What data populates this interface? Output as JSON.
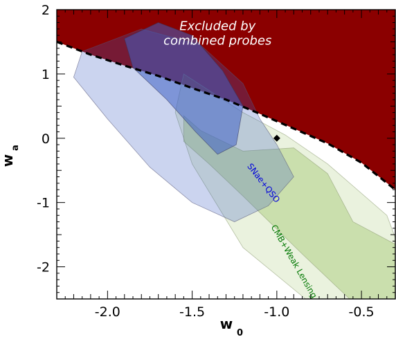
{
  "chart_data": {
    "type": "contour",
    "x_axis": {
      "label": "w",
      "label_subscript": "0",
      "lim": [
        -2.3,
        -0.3
      ],
      "ticks": [
        -2.0,
        -1.5,
        -1.0,
        -0.5
      ],
      "tick_labels": [
        "-2.0",
        "-1.5",
        "-1.0",
        "-0.5"
      ]
    },
    "y_axis": {
      "label": "w",
      "label_subscript": "a",
      "lim": [
        -2.5,
        2.0
      ],
      "ticks": [
        -2,
        -1,
        0,
        1,
        2
      ],
      "tick_labels": [
        "-2",
        "-1",
        "0",
        "1",
        "2"
      ]
    },
    "grid": false,
    "regions": [
      {
        "name": "Excluded by combined probes",
        "label_lines": [
          "Excluded by",
          "combined probes"
        ],
        "color": "#8b0000",
        "boundary": [
          [
            -2.3,
            1.5
          ],
          [
            -2.1,
            1.3
          ],
          [
            -1.9,
            1.13
          ],
          [
            -1.7,
            0.97
          ],
          [
            -1.5,
            0.78
          ],
          [
            -1.3,
            0.6
          ],
          [
            -1.1,
            0.38
          ],
          [
            -0.9,
            0.15
          ],
          [
            -0.7,
            -0.08
          ],
          [
            -0.5,
            -0.38
          ],
          [
            -0.3,
            -0.8
          ]
        ]
      },
      {
        "name": "CMB+Weak Lensing",
        "color": "#8ab84a",
        "label_color": "#007700",
        "outer": [
          [
            -1.55,
            1.0
          ],
          [
            -1.2,
            0.4
          ],
          [
            -0.95,
            0.05
          ],
          [
            -0.7,
            -0.4
          ],
          [
            -0.35,
            -1.2
          ],
          [
            -0.3,
            -1.55
          ],
          [
            -0.3,
            -2.5
          ],
          [
            -0.83,
            -2.5
          ],
          [
            -1.2,
            -1.7
          ],
          [
            -1.5,
            -0.4
          ],
          [
            -1.6,
            0.4
          ]
        ],
        "inner": [
          [
            -1.55,
            0.35
          ],
          [
            -1.45,
            0.12
          ],
          [
            -1.2,
            -0.2
          ],
          [
            -0.9,
            -0.15
          ],
          [
            -0.7,
            -0.55
          ],
          [
            -0.55,
            -1.3
          ],
          [
            -0.3,
            -1.65
          ],
          [
            -0.3,
            -2.5
          ],
          [
            -0.57,
            -2.5
          ],
          [
            -0.85,
            -1.8
          ],
          [
            -1.2,
            -0.9
          ],
          [
            -1.4,
            -0.4
          ],
          [
            -1.55,
            -0.05
          ]
        ]
      },
      {
        "name": "SNae+QSO",
        "color": "#3f60c4",
        "label_color": "#0000dd",
        "outer": [
          [
            -1.8,
            1.7
          ],
          [
            -1.45,
            1.45
          ],
          [
            -1.2,
            0.85
          ],
          [
            -1.1,
            0.3
          ],
          [
            -1.0,
            -0.1
          ],
          [
            -0.9,
            -0.6
          ],
          [
            -1.05,
            -1.05
          ],
          [
            -1.25,
            -1.3
          ],
          [
            -1.5,
            -1.0
          ],
          [
            -1.75,
            -0.45
          ],
          [
            -2.0,
            0.3
          ],
          [
            -2.2,
            0.95
          ],
          [
            -2.15,
            1.35
          ]
        ],
        "inner": [
          [
            -1.7,
            1.8
          ],
          [
            -1.5,
            1.6
          ],
          [
            -1.32,
            1.05
          ],
          [
            -1.2,
            0.5
          ],
          [
            -1.24,
            -0.1
          ],
          [
            -1.35,
            -0.25
          ],
          [
            -1.48,
            0.1
          ],
          [
            -1.65,
            0.6
          ],
          [
            -1.85,
            1.1
          ],
          [
            -1.9,
            1.55
          ]
        ]
      }
    ],
    "boundary_line": {
      "style": "dashed",
      "color": "#000000",
      "points": [
        [
          -2.3,
          1.5
        ],
        [
          -2.1,
          1.3
        ],
        [
          -1.9,
          1.13
        ],
        [
          -1.7,
          0.97
        ],
        [
          -1.5,
          0.78
        ],
        [
          -1.3,
          0.6
        ],
        [
          -1.1,
          0.38
        ],
        [
          -0.9,
          0.15
        ],
        [
          -0.7,
          -0.08
        ],
        [
          -0.5,
          -0.38
        ],
        [
          -0.3,
          -0.8
        ]
      ]
    },
    "markers": [
      {
        "name": "LCDM point",
        "shape": "diamond",
        "x": -1.0,
        "y": 0.0,
        "color": "#000000"
      }
    ],
    "annotations": [
      {
        "text": "SNae+QSO",
        "x": -1.08,
        "y": -0.7,
        "rotation": 52
      },
      {
        "text": "CMB+Weak Lensing",
        "x": -0.9,
        "y": -1.92,
        "rotation": 60
      }
    ]
  }
}
